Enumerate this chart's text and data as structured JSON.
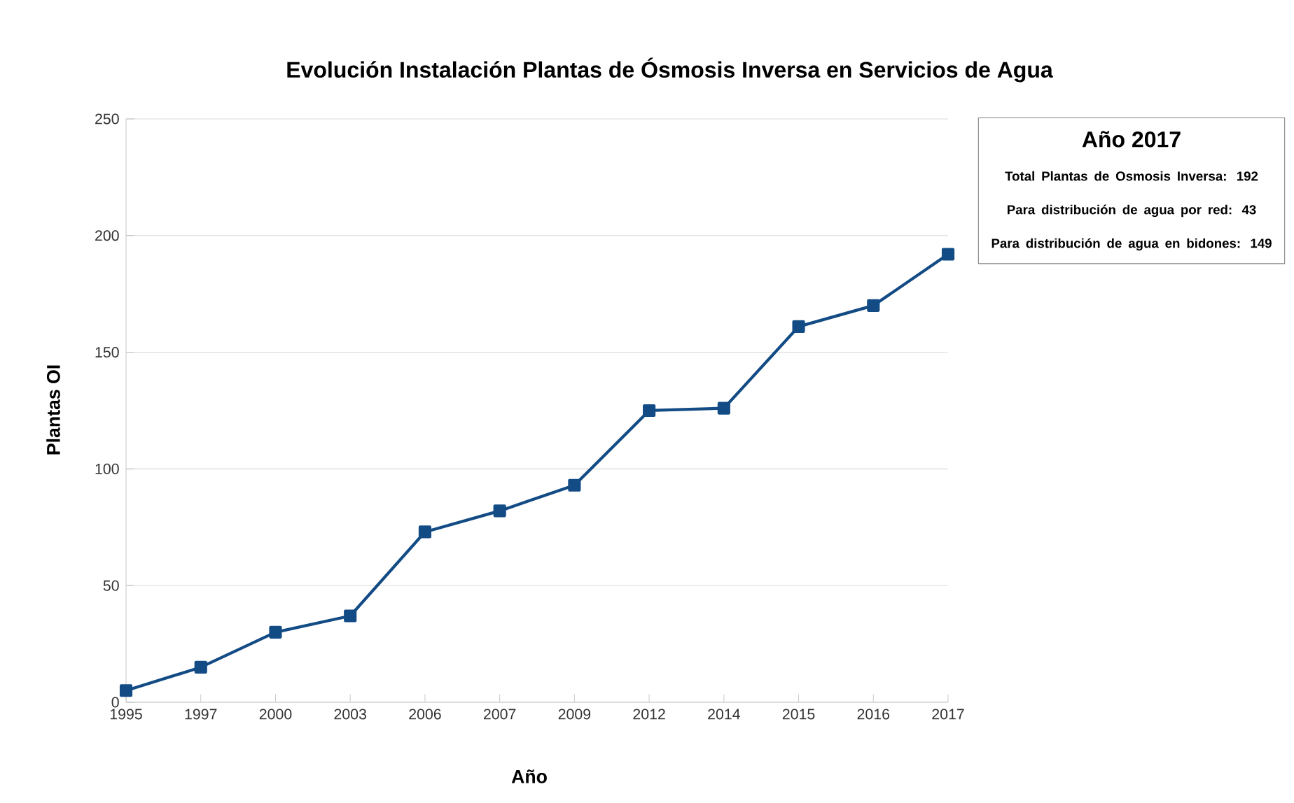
{
  "chart_data": {
    "type": "line",
    "title": "Evolución Instalación Plantas de Ósmosis Inversa en Servicios de Agua",
    "xlabel": "Año",
    "ylabel": "Plantas OI",
    "categories": [
      "1995",
      "1997",
      "2000",
      "2003",
      "2006",
      "2007",
      "2009",
      "2012",
      "2014",
      "2015",
      "2016",
      "2017"
    ],
    "series": [
      {
        "color": "#134b85",
        "values": [
          5,
          15,
          30,
          37,
          73,
          82,
          93,
          125,
          126,
          161,
          170,
          192
        ]
      }
    ],
    "ylim": [
      0,
      250
    ],
    "yticks": [
      0,
      50,
      100,
      150,
      200,
      250
    ],
    "grid": "y",
    "marker": "square",
    "line_style": "solid",
    "annotations": [
      "Año 2017",
      "Total Plantas de Osmosis Inversa: 192",
      "Para distribución de agua por red: 43",
      "Para distribución de agua en bidones: 149"
    ]
  }
}
